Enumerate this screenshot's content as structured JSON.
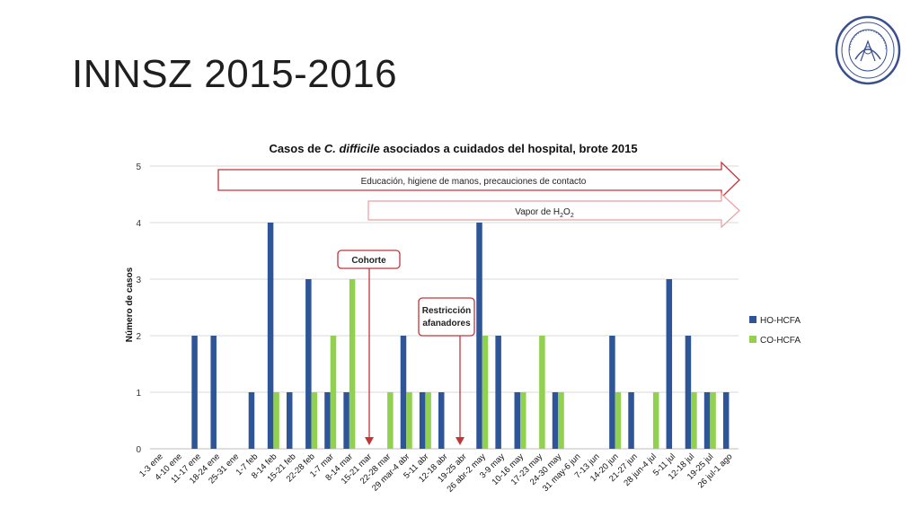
{
  "slide": {
    "title": "INNSZ 2015-2016",
    "logo_text": "INSTITUTO NACIONAL DE CIENCIAS MEDICAS Y NUTRICION SALVADOR ZUBIRAN"
  },
  "chart_data": {
    "type": "bar",
    "title_parts": [
      "Casos de ",
      "C. difficile",
      " asociados a cuidados del hospital, brote 2015"
    ],
    "xlabel": "",
    "ylabel": "Número de casos",
    "ylim": [
      0,
      5
    ],
    "yticks": [
      0,
      1,
      2,
      3,
      4,
      5
    ],
    "grid": true,
    "legend_position": "right",
    "categories": [
      "1-3 ene",
      "4-10 ene",
      "11-17 ene",
      "18-24 ene",
      "25-31 ene",
      "1-7 feb",
      "8-14 feb",
      "15-21 feb",
      "22-28 feb",
      "1-7 mar",
      "8-14 mar",
      "15-21 mar",
      "22-28 mar",
      "29 mar-4 abr",
      "5-11 abr",
      "12-18 abr",
      "19-25 abr",
      "26 abr-2 may",
      "3-9 may",
      "10-16 may",
      "17-23 may",
      "24-30 may",
      "31 may-6 jun",
      "7-13 jun",
      "14-20 jun",
      "21-27 jun",
      "28 jun-4 jul",
      "5-11 jul",
      "12-18 jul",
      "19-25 jul",
      "26 jul-1 ago"
    ],
    "series": [
      {
        "name": "HO-HCFA",
        "color": "#2e5597",
        "values": [
          0,
          0,
          2,
          2,
          0,
          1,
          4,
          1,
          3,
          1,
          1,
          0,
          0,
          2,
          1,
          1,
          0,
          4,
          2,
          1,
          0,
          1,
          0,
          0,
          2,
          1,
          0,
          3,
          2,
          1,
          1
        ]
      },
      {
        "name": "CO-HCFA",
        "color": "#92d050",
        "values": [
          0,
          0,
          0,
          0,
          0,
          0,
          1,
          0,
          1,
          2,
          3,
          0,
          1,
          1,
          1,
          0,
          0,
          2,
          0,
          1,
          2,
          1,
          0,
          0,
          1,
          0,
          1,
          0,
          1,
          1,
          0
        ]
      }
    ],
    "annotations": {
      "arrow1": "Educación, higiene de manos, precauciones de contacto",
      "arrow2_prefix": "Vapor de H",
      "arrow2_sub1": "2",
      "arrow2_mid": "O",
      "arrow2_sub2": "2",
      "box1": "Cohorte",
      "box2_line1": "Restricción",
      "box2_line2": "afanadores"
    }
  }
}
